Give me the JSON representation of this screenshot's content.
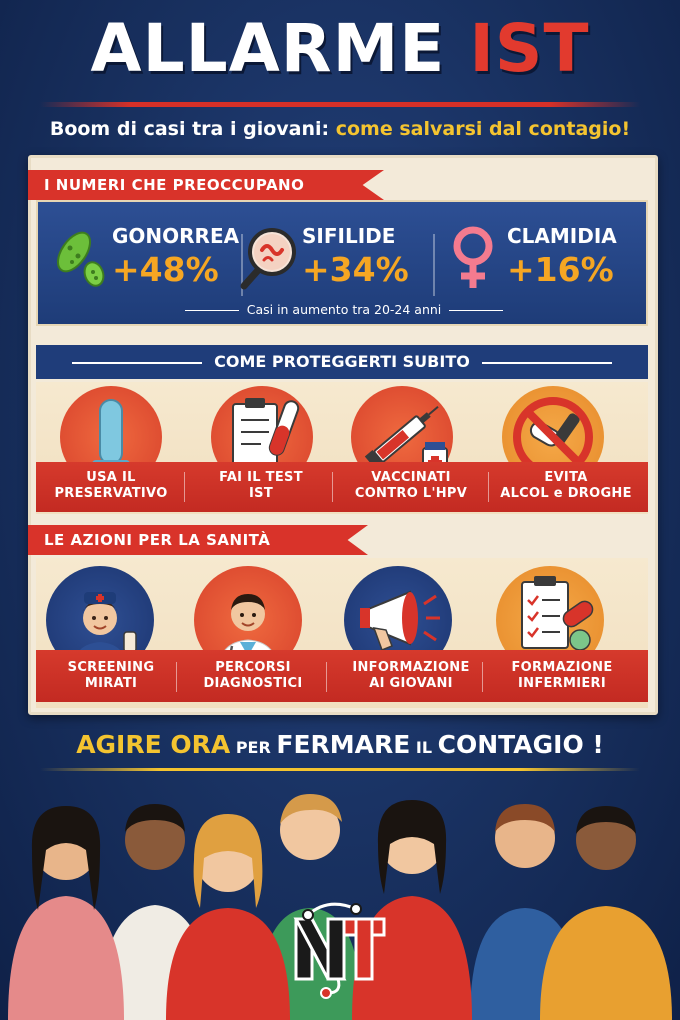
{
  "header": {
    "title_part1": "ALLARME ",
    "title_part2": "IST",
    "subtitle_part1": "Boom di casi tra i giovani: ",
    "subtitle_part2": "come salvarsi dal contagio!"
  },
  "numbers": {
    "heading": "I NUMERI CHE PREOCCUPANO",
    "stats": [
      {
        "name": "GONORREA",
        "value": "+48%",
        "icon": "bacteria-icon"
      },
      {
        "name": "SIFILIDE",
        "value": "+34%",
        "icon": "magnifier-icon"
      },
      {
        "name": "CLAMIDIA",
        "value": "+16%",
        "icon": "female-symbol-icon"
      }
    ],
    "note": "Casi in aumento tra 20-24 anni"
  },
  "protection": {
    "heading": "COME PROTEGGERTI SUBITO",
    "items": [
      {
        "line1": "USA IL",
        "line2": "PRESERVATIVO",
        "icon": "condom-icon"
      },
      {
        "line1": "FAI IL TEST",
        "line2": "IST",
        "icon": "clipboard-test-tube-icon"
      },
      {
        "line1": "VACCINATI",
        "line2": "CONTRO L'HPV",
        "icon": "syringe-icon"
      },
      {
        "line1": "EVITA",
        "line2": "ALCOL e DROGHE",
        "icon": "no-pills-icon"
      }
    ]
  },
  "actions": {
    "heading": "LE AZIONI PER LA SANITÀ",
    "items": [
      {
        "line1": "SCREENING",
        "line2": "MIRATI",
        "icon": "nurse-icon"
      },
      {
        "line1": "PERCORSI",
        "line2": "DIAGNOSTICI",
        "icon": "doctor-icon"
      },
      {
        "line1": "INFORMAZIONE",
        "line2": "AI GIOVANI",
        "icon": "megaphone-icon"
      },
      {
        "line1": "FORMAZIONE",
        "line2": "INFERMIERI",
        "icon": "clipboard-pills-icon"
      }
    ]
  },
  "cta": {
    "part1": "AGIRE ORA",
    "part2": " PER ",
    "part3": "FERMARE",
    "part4": " IL ",
    "part5": "CONTAGIO",
    "part6": " !"
  },
  "colors": {
    "accent_red": "#d9332a",
    "accent_yellow": "#f4c430",
    "navy": "#1f3d7a",
    "stat_orange": "#f5a623"
  }
}
